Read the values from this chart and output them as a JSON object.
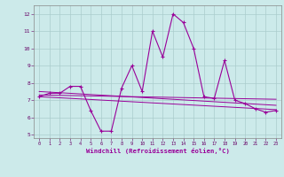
{
  "main_line_x": [
    0,
    1,
    2,
    3,
    4,
    5,
    6,
    7,
    8,
    9,
    10,
    11,
    12,
    13,
    14,
    15,
    16,
    17,
    18,
    19,
    20,
    21,
    22,
    23
  ],
  "main_line_y": [
    7.2,
    7.4,
    7.4,
    7.8,
    7.8,
    6.4,
    5.2,
    5.2,
    7.7,
    9.0,
    7.5,
    11.0,
    9.5,
    12.0,
    11.5,
    10.0,
    7.2,
    7.1,
    9.3,
    7.0,
    6.8,
    6.5,
    6.3,
    6.4
  ],
  "trend1_x": [
    0,
    23
  ],
  "trend1_y": [
    7.3,
    7.05
  ],
  "trend2_x": [
    0,
    23
  ],
  "trend2_y": [
    7.5,
    6.7
  ],
  "trend3_x": [
    0,
    23
  ],
  "trend3_y": [
    7.2,
    6.45
  ],
  "line_color": "#990099",
  "bg_color": "#cceaea",
  "grid_color": "#aacccc",
  "xlabel": "Windchill (Refroidissement éolien,°C)",
  "xlim": [
    -0.5,
    23.5
  ],
  "ylim": [
    4.8,
    12.5
  ],
  "yticks": [
    5,
    6,
    7,
    8,
    9,
    10,
    11,
    12
  ],
  "xticks": [
    0,
    1,
    2,
    3,
    4,
    5,
    6,
    7,
    8,
    9,
    10,
    11,
    12,
    13,
    14,
    15,
    16,
    17,
    18,
    19,
    20,
    21,
    22,
    23
  ],
  "xtick_labels": [
    "0",
    "1",
    "2",
    "3",
    "4",
    "5",
    "6",
    "7",
    "8",
    "9",
    "10",
    "11",
    "12",
    "13",
    "14",
    "15",
    "16",
    "17",
    "18",
    "19",
    "20",
    "21",
    "22",
    "23"
  ]
}
